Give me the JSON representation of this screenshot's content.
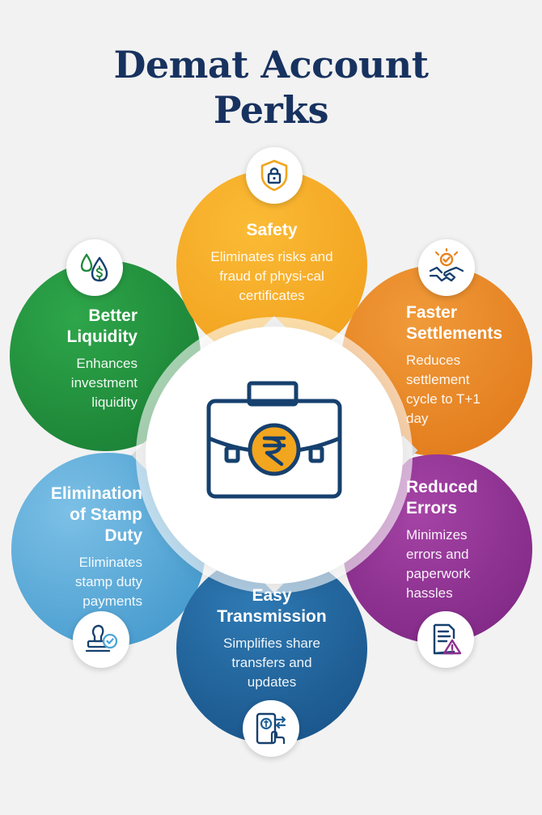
{
  "title": {
    "line1": "Demat Account",
    "line2": "Perks"
  },
  "colors": {
    "title": "#17325f",
    "safety": "#f4a622",
    "faster": "#e8821f",
    "reduced": "#8e2f8f",
    "transmission": "#1e5f96",
    "stamp": "#4ea6d7",
    "liquidity": "#1f8a3a",
    "icon": "#16406e",
    "rupee": "#f2a51e"
  },
  "center": {
    "icon": "briefcase-rupee-icon"
  },
  "perks": [
    {
      "id": "safety",
      "heading": "Safety",
      "description": "Eliminates risks and fraud of physi-cal certificates",
      "icon": "shield-lock-icon"
    },
    {
      "id": "faster",
      "heading": "Faster Settlements",
      "description": "Reduces settlement cycle to T+1 day",
      "icon": "handshake-icon"
    },
    {
      "id": "reduced",
      "heading": "Reduced Errors",
      "description": "Minimizes errors and paperwork hassles",
      "icon": "document-warning-icon"
    },
    {
      "id": "transmission",
      "heading": "Easy Transmission",
      "description": "Simplifies share transfers and updates",
      "icon": "mobile-transfer-icon"
    },
    {
      "id": "stamp",
      "heading": "Elimination of Stamp Duty",
      "description": "Eliminates stamp duty payments",
      "icon": "stamp-check-icon"
    },
    {
      "id": "liquidity",
      "heading": "Better Liquidity",
      "description": "Enhances investment liquidity",
      "icon": "money-drops-icon"
    }
  ]
}
